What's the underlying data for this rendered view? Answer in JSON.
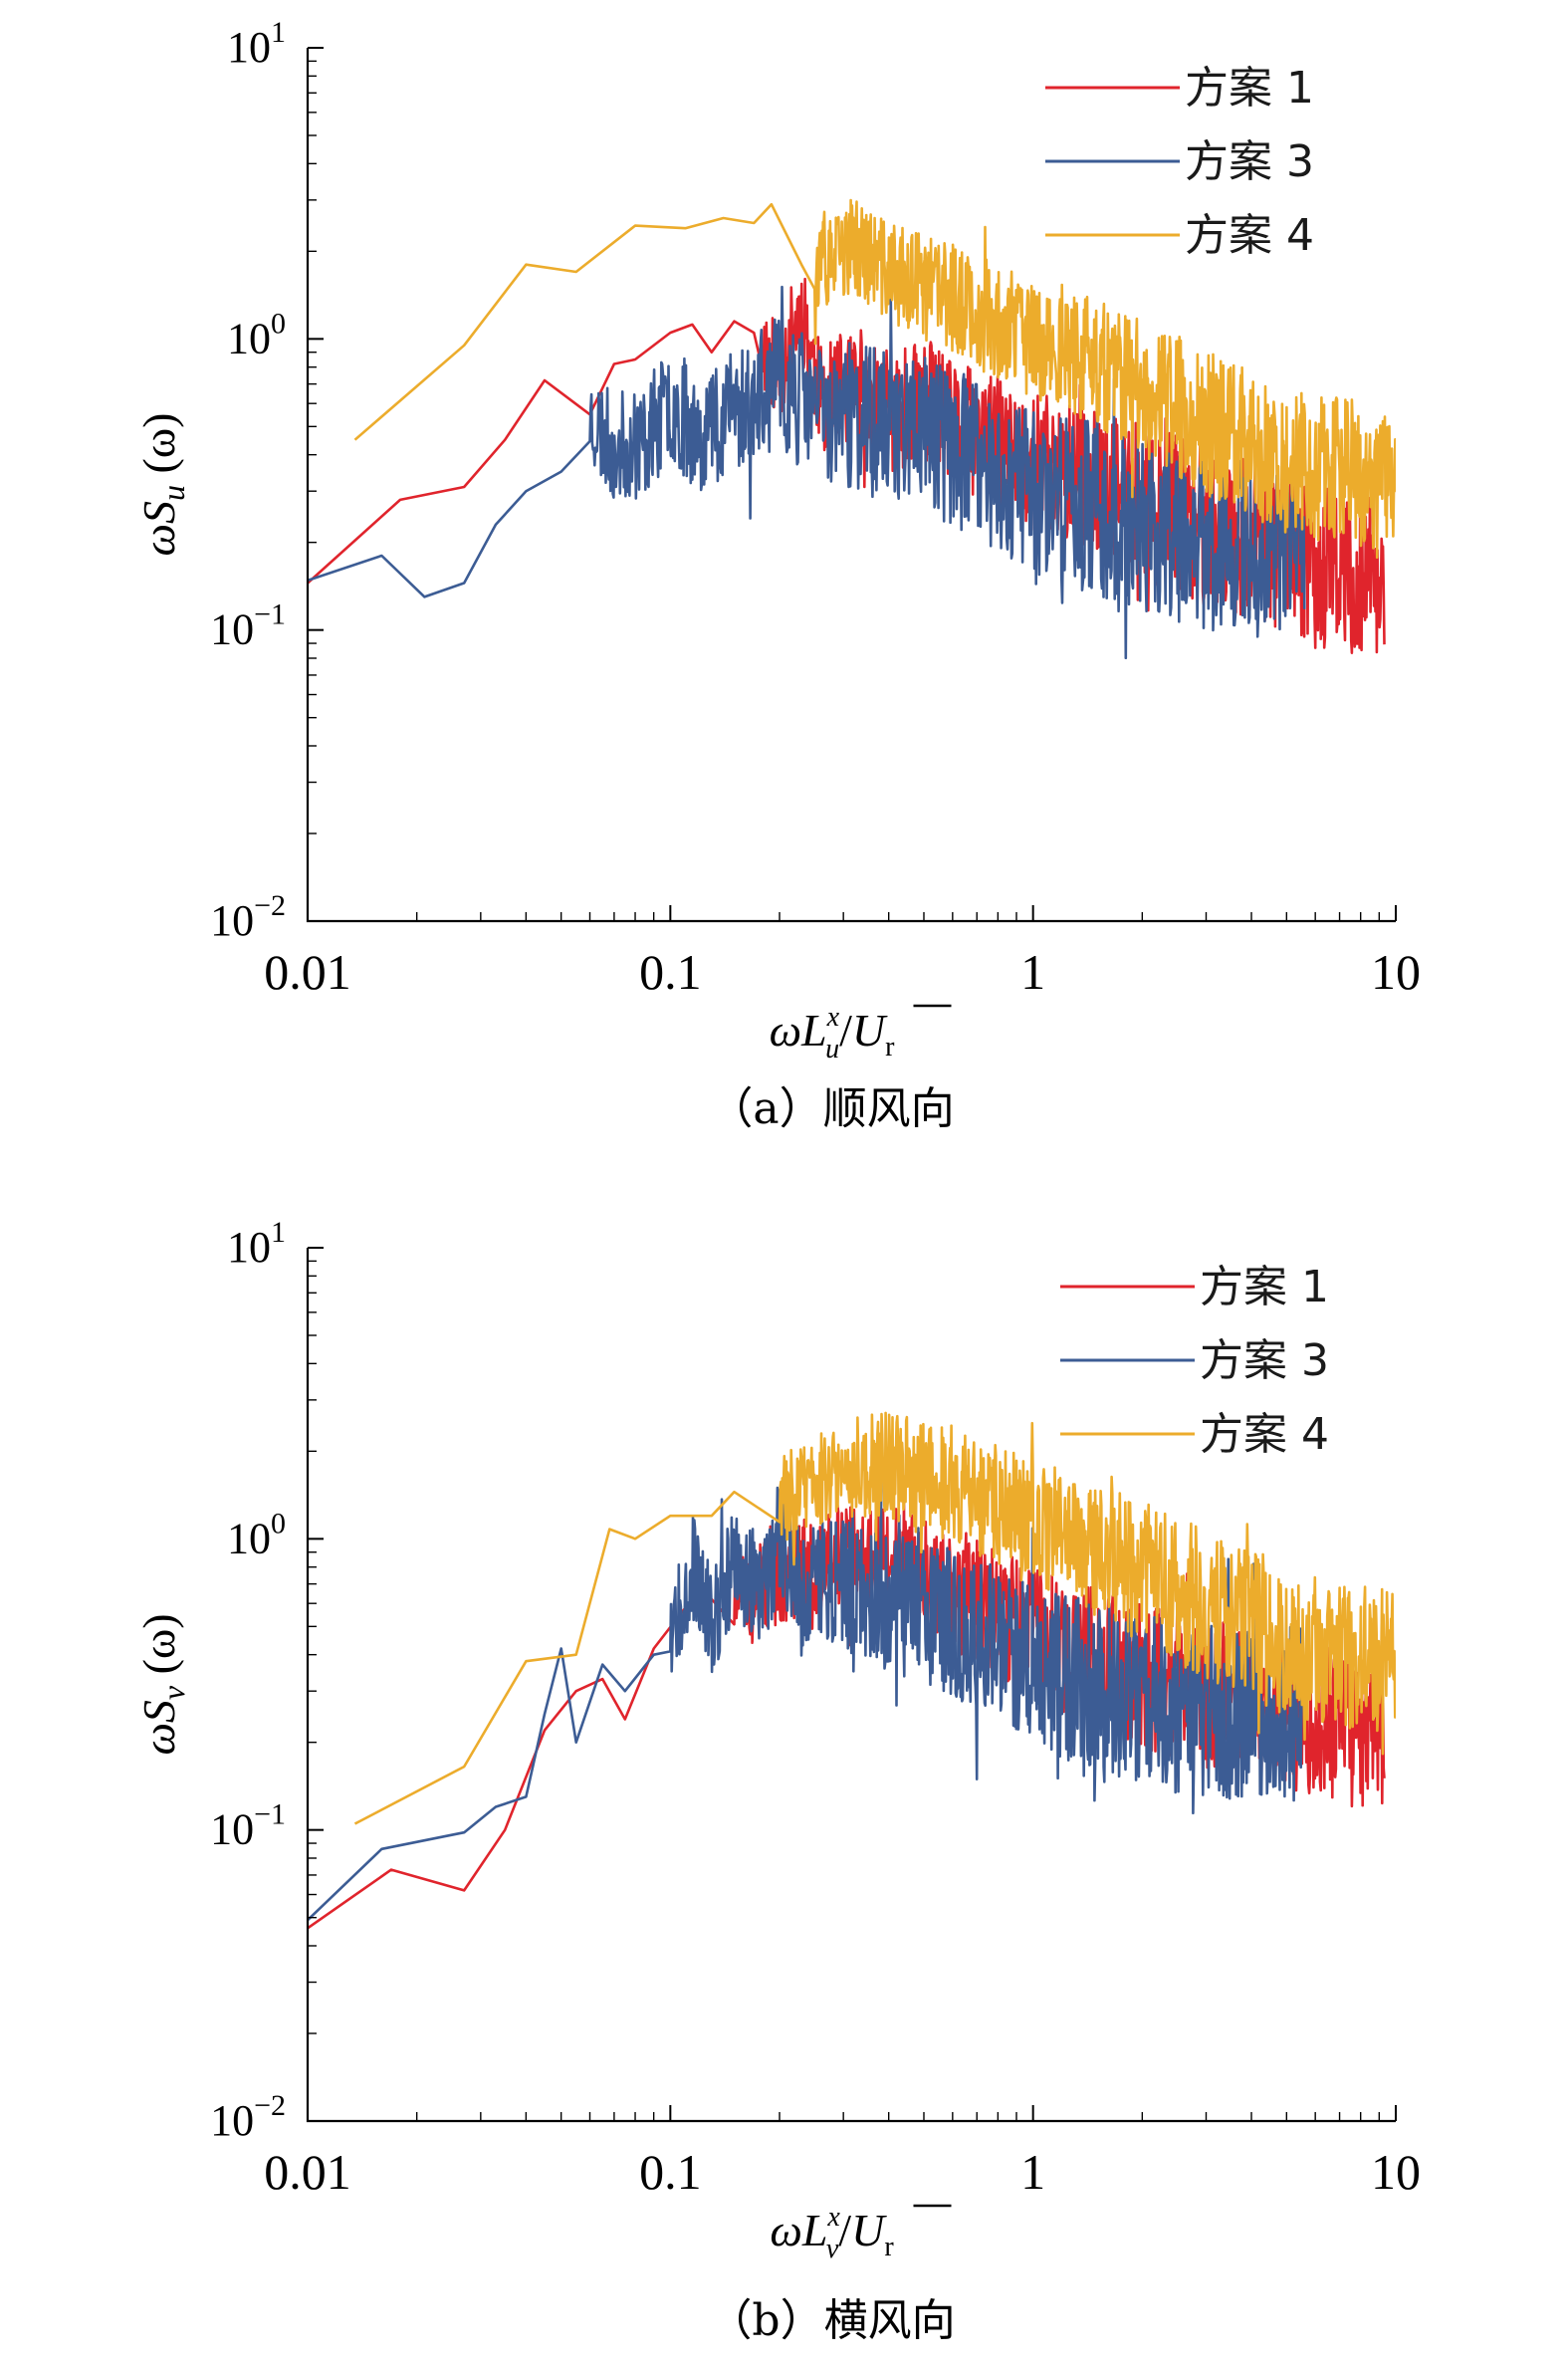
{
  "colors": {
    "scheme1": "#e0242c",
    "scheme3": "#3c5c94",
    "scheme4": "#ecac2c"
  },
  "chart_data": [
    {
      "type": "line",
      "xscale": "log",
      "yscale": "log",
      "xlim": [
        0.01,
        10
      ],
      "ylim": [
        0.01,
        10
      ],
      "xticks": [
        "0.01",
        "0.1",
        "1",
        "10"
      ],
      "yticks": [
        {
          "base": "10",
          "exp": "−2"
        },
        {
          "base": "10",
          "exp": "−1"
        },
        {
          "base": "10",
          "exp": "0"
        },
        {
          "base": "10",
          "exp": "1"
        }
      ],
      "ylabel": {
        "omega": "ω",
        "S": "S",
        "sub": "u",
        "arg": " (ω)"
      },
      "xlabel": {
        "omega": "ω",
        "L": "L",
        "sup": "x",
        "sub": "u",
        "slash": "/",
        "U": "U",
        "Usub": "r"
      },
      "caption": "（a）顺风向",
      "legend": [
        "方案 1",
        "方案 3",
        "方案 4"
      ],
      "series": [
        {
          "name": "方案 1",
          "color_key": "scheme1",
          "x": [
            0.01,
            0.018,
            0.027,
            0.035,
            0.045,
            0.06,
            0.07,
            0.08,
            0.1,
            0.115,
            0.13,
            0.15,
            0.17,
            0.2,
            0.23,
            0.26,
            0.3,
            0.36,
            0.42,
            0.5,
            0.6,
            0.75,
            0.9,
            1.1,
            1.4,
            1.8,
            2.3,
            3,
            3.8,
            4.8,
            5.6,
            6.5,
            8,
            9.3
          ],
          "y": [
            0.145,
            0.28,
            0.31,
            0.45,
            0.72,
            0.55,
            0.82,
            0.85,
            1.05,
            1.12,
            0.9,
            1.15,
            1.05,
            0.78,
            1.3,
            0.62,
            0.68,
            0.6,
            0.55,
            0.65,
            0.5,
            0.46,
            0.4,
            0.37,
            0.33,
            0.29,
            0.26,
            0.23,
            0.21,
            0.19,
            0.17,
            0.16,
            0.15,
            0.14
          ],
          "noise_from": 0.18,
          "noise": 0.28,
          "seed": 11
        },
        {
          "name": "方案 3",
          "color_key": "scheme3",
          "x": [
            0.01,
            0.016,
            0.021,
            0.027,
            0.033,
            0.04,
            0.05,
            0.06,
            0.07,
            0.085,
            0.1,
            0.12,
            0.14,
            0.17,
            0.2,
            0.25,
            0.3,
            0.4,
            0.5,
            0.6,
            0.75,
            0.9,
            1.1,
            1.4,
            1.8,
            2.3,
            3,
            3.8,
            4.8,
            5.6
          ],
          "y": [
            0.148,
            0.18,
            0.13,
            0.145,
            0.23,
            0.3,
            0.35,
            0.55,
            0.42,
            0.45,
            0.6,
            0.48,
            0.55,
            0.62,
            0.7,
            0.58,
            0.55,
            0.5,
            0.52,
            0.42,
            0.36,
            0.32,
            0.3,
            0.27,
            0.24,
            0.21,
            0.2,
            0.19,
            0.18,
            0.18
          ],
          "noise_from": 0.06,
          "noise": 0.3,
          "seed": 23
        },
        {
          "name": "方案 4",
          "color_key": "scheme4",
          "x": [
            0.0135,
            0.027,
            0.04,
            0.055,
            0.08,
            0.11,
            0.14,
            0.17,
            0.19,
            0.23,
            0.27,
            0.32,
            0.4,
            0.5,
            0.6,
            0.75,
            0.9,
            1.1,
            1.4,
            1.8,
            2.3,
            3,
            3.8,
            4.8,
            6,
            8,
            10
          ],
          "y": [
            0.45,
            0.95,
            1.8,
            1.7,
            2.45,
            2.4,
            2.6,
            2.5,
            2.9,
            1.8,
            1.75,
            2.1,
            1.7,
            1.5,
            1.4,
            1.2,
            1.05,
            0.95,
            0.85,
            0.72,
            0.62,
            0.52,
            0.45,
            0.4,
            0.36,
            0.33,
            0.3
          ],
          "noise_from": 0.25,
          "noise": 0.26,
          "seed": 37
        }
      ]
    },
    {
      "type": "line",
      "xscale": "log",
      "yscale": "log",
      "xlim": [
        0.01,
        10
      ],
      "ylim": [
        0.01,
        10
      ],
      "xticks": [
        "0.01",
        "0.1",
        "1",
        "10"
      ],
      "yticks": [
        {
          "base": "10",
          "exp": "−2"
        },
        {
          "base": "10",
          "exp": "−1"
        },
        {
          "base": "10",
          "exp": "0"
        },
        {
          "base": "10",
          "exp": "1"
        }
      ],
      "ylabel": {
        "omega": "ω",
        "S": "S",
        "sub": "v",
        "arg": " (ω)"
      },
      "xlabel": {
        "omega": "ω",
        "L": "L",
        "sup": "x",
        "sub": "v",
        "slash": "/",
        "U": "U",
        "Usub": "r"
      },
      "caption": "（b）横风向",
      "legend": [
        "方案 1",
        "方案 3",
        "方案 4"
      ],
      "series": [
        {
          "name": "方案 1",
          "color_key": "scheme1",
          "x": [
            0.01,
            0.017,
            0.027,
            0.035,
            0.045,
            0.055,
            0.065,
            0.075,
            0.09,
            0.11,
            0.13,
            0.16,
            0.2,
            0.25,
            0.3,
            0.4,
            0.5,
            0.65,
            0.8,
            1,
            1.3,
            1.7,
            2.2,
            2.8,
            3.6,
            4.5,
            5.6,
            7,
            9.3
          ],
          "y": [
            0.046,
            0.073,
            0.062,
            0.1,
            0.22,
            0.3,
            0.33,
            0.24,
            0.42,
            0.58,
            0.62,
            0.6,
            0.75,
            0.8,
            0.9,
            0.82,
            0.78,
            0.65,
            0.55,
            0.48,
            0.42,
            0.37,
            0.33,
            0.3,
            0.28,
            0.26,
            0.24,
            0.23,
            0.21
          ],
          "noise_from": 0.15,
          "noise": 0.26,
          "seed": 51
        },
        {
          "name": "方案 3",
          "color_key": "scheme3",
          "x": [
            0.01,
            0.016,
            0.027,
            0.033,
            0.04,
            0.045,
            0.05,
            0.055,
            0.065,
            0.075,
            0.09,
            0.1,
            0.115,
            0.13,
            0.15,
            0.18,
            0.2,
            0.23,
            0.27,
            0.32,
            0.4,
            0.5,
            0.65,
            0.8,
            1,
            1.3,
            1.7,
            2.2,
            2.8,
            3.6,
            4.5,
            5.6
          ],
          "y": [
            0.049,
            0.086,
            0.098,
            0.12,
            0.13,
            0.25,
            0.42,
            0.2,
            0.37,
            0.3,
            0.4,
            0.5,
            0.8,
            0.5,
            0.85,
            0.6,
            1.1,
            0.65,
            0.75,
            0.68,
            0.6,
            0.55,
            0.5,
            0.45,
            0.38,
            0.33,
            0.3,
            0.27,
            0.26,
            0.25,
            0.25,
            0.25
          ],
          "noise_from": 0.1,
          "noise": 0.3,
          "seed": 67
        },
        {
          "name": "方案 4",
          "color_key": "scheme4",
          "x": [
            0.0135,
            0.027,
            0.04,
            0.055,
            0.068,
            0.08,
            0.1,
            0.13,
            0.15,
            0.2,
            0.25,
            0.3,
            0.4,
            0.5,
            0.6,
            0.75,
            0.9,
            1.1,
            1.4,
            1.8,
            2.3,
            3,
            3.8,
            4.8,
            6,
            8,
            10
          ],
          "y": [
            0.105,
            0.165,
            0.38,
            0.4,
            1.08,
            1.0,
            1.2,
            1.2,
            1.45,
            1.35,
            1.6,
            1.75,
            1.8,
            1.65,
            1.5,
            1.35,
            1.2,
            1.05,
            0.95,
            0.82,
            0.7,
            0.6,
            0.52,
            0.46,
            0.42,
            0.4,
            0.38
          ],
          "noise_from": 0.2,
          "noise": 0.26,
          "seed": 83
        }
      ]
    }
  ]
}
